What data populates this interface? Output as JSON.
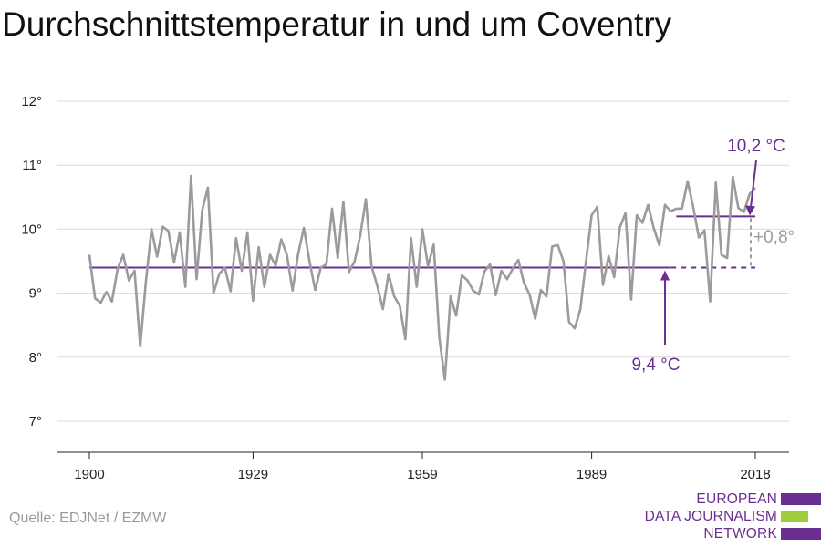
{
  "title": "Durchschnittstemperatur in und um Coventry",
  "source": "Quelle: EDJNet / EZMW",
  "logo": {
    "lines": [
      "EUROPEAN",
      "DATA JOURNALISM",
      "NETWORK"
    ],
    "colors": {
      "purple": "#6a2d91",
      "green": "#9fcd3c"
    }
  },
  "colors": {
    "series": "#9b9b9b",
    "purple": "#6a2d91",
    "grid": "#d9d9d9",
    "gray_annot": "#9b9b9b"
  },
  "chart_data": {
    "type": "line",
    "title": "Durchschnittstemperatur in und um Coventry",
    "xlabel": "",
    "ylabel": "",
    "xlim": [
      1900,
      2018
    ],
    "ylim": [
      6.5,
      12.5
    ],
    "x_ticks": [
      1900,
      1929,
      1959,
      1989,
      2018
    ],
    "y_ticks": [
      7,
      8,
      9,
      10,
      11,
      12
    ],
    "y_tick_labels": [
      "7°",
      "8°",
      "9°",
      "10°",
      "11°",
      "12°"
    ],
    "grid": true,
    "series": [
      {
        "x": [
          1900,
          1901,
          1902,
          1903,
          1904,
          1905,
          1906,
          1907,
          1908,
          1909,
          1910,
          1911,
          1912,
          1913,
          1914,
          1915,
          1916,
          1917,
          1918,
          1919,
          1920,
          1921,
          1922,
          1923,
          1924,
          1925,
          1926,
          1927,
          1928,
          1929,
          1930,
          1931,
          1932,
          1933,
          1934,
          1935,
          1936,
          1937,
          1938,
          1939,
          1940,
          1941,
          1942,
          1943,
          1944,
          1945,
          1946,
          1947,
          1948,
          1949,
          1950,
          1951,
          1952,
          1953,
          1954,
          1955,
          1956,
          1957,
          1958,
          1959,
          1960,
          1961,
          1962,
          1963,
          1964,
          1965,
          1966,
          1967,
          1968,
          1969,
          1970,
          1971,
          1972,
          1973,
          1974,
          1975,
          1976,
          1977,
          1978,
          1979,
          1980,
          1981,
          1982,
          1983,
          1984,
          1985,
          1986,
          1987,
          1988,
          1989,
          1990,
          1991,
          1992,
          1993,
          1994,
          1995,
          1996,
          1997,
          1998,
          1999,
          2000,
          2001,
          2002,
          2003,
          2004,
          2005,
          2006,
          2007,
          2008,
          2009,
          2010,
          2011,
          2012,
          2013,
          2014,
          2015,
          2016,
          2017,
          2018
        ],
        "values": [
          9.6,
          8.92,
          8.85,
          9.02,
          8.87,
          9.38,
          9.6,
          9.2,
          9.35,
          8.17,
          9.18,
          10.0,
          9.57,
          10.04,
          9.97,
          9.48,
          9.95,
          9.1,
          10.83,
          9.22,
          10.3,
          10.65,
          9.0,
          9.3,
          9.4,
          9.03,
          9.86,
          9.35,
          9.95,
          8.88,
          9.72,
          9.1,
          9.6,
          9.43,
          9.84,
          9.6,
          9.04,
          9.62,
          10.02,
          9.5,
          9.05,
          9.4,
          9.45,
          10.32,
          9.55,
          10.43,
          9.33,
          9.5,
          9.9,
          10.47,
          9.42,
          9.12,
          8.75,
          9.3,
          8.95,
          8.8,
          8.28,
          9.86,
          9.1,
          10.0,
          9.42,
          9.76,
          8.3,
          7.65,
          8.95,
          8.65,
          9.28,
          9.2,
          9.04,
          8.98,
          9.34,
          9.45,
          8.97,
          9.35,
          9.22,
          9.38,
          9.52,
          9.16,
          8.98,
          8.6,
          9.05,
          8.95,
          9.73,
          9.75,
          9.5,
          8.55,
          8.45,
          8.75,
          9.5,
          10.22,
          10.35,
          9.13,
          9.58,
          9.25,
          10.03,
          10.25,
          8.9,
          10.22,
          10.1,
          10.38,
          10.02,
          9.75,
          10.38,
          10.28,
          10.32,
          10.32,
          10.75,
          10.35,
          9.87,
          9.98,
          8.87,
          10.73,
          9.6,
          9.55,
          10.82,
          10.33,
          10.27,
          10.55,
          10.65
        ]
      }
    ],
    "baseline": {
      "value": 9.4,
      "label": "9,4 °C",
      "x_solid": [
        1900,
        2003
      ],
      "x_dashed": [
        2003,
        2018
      ]
    },
    "recent": {
      "value": 10.2,
      "label": "10,2 °C",
      "x": [
        2004,
        2018
      ]
    },
    "difference": {
      "label": "+0,8°"
    }
  }
}
